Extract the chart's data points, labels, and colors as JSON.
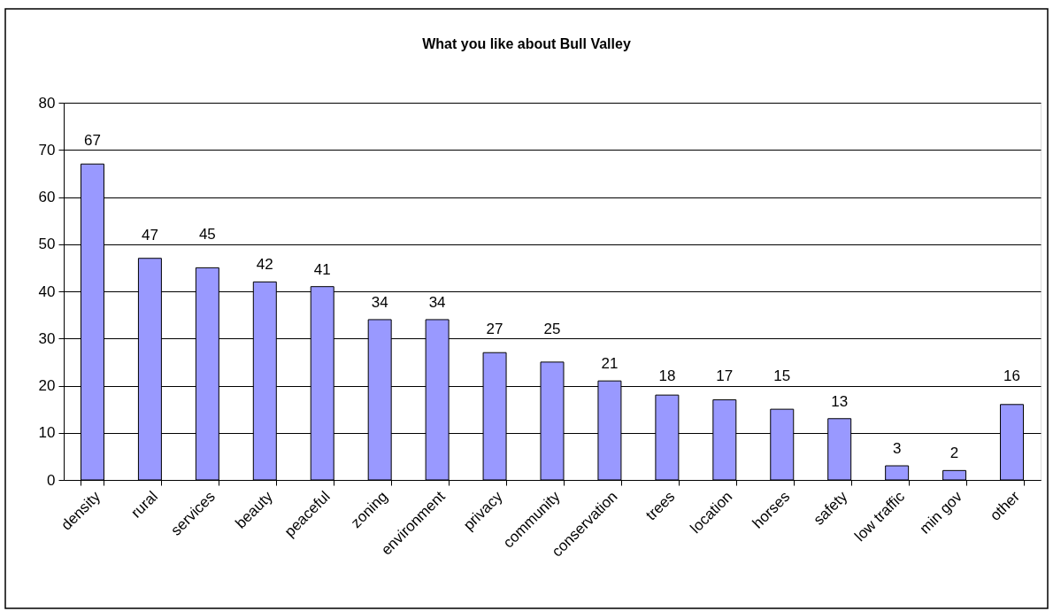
{
  "chart_data": {
    "type": "bar",
    "title": "What you like about Bull Valley",
    "categories": [
      "density",
      "rural",
      "services",
      "beauty",
      "peaceful",
      "zoning",
      "environment",
      "privacy",
      "community",
      "conservation",
      "trees",
      "location",
      "horses",
      "safety",
      "low traffic",
      "min gov",
      "other"
    ],
    "values": [
      67,
      47,
      45,
      42,
      41,
      34,
      34,
      27,
      25,
      21,
      18,
      17,
      15,
      13,
      3,
      2,
      16
    ],
    "color": "#9999ff",
    "ylim": [
      0,
      80
    ],
    "yticks": [
      0,
      10,
      20,
      30,
      40,
      50,
      60,
      70,
      80
    ],
    "grid": "y",
    "data_labels": true
  }
}
